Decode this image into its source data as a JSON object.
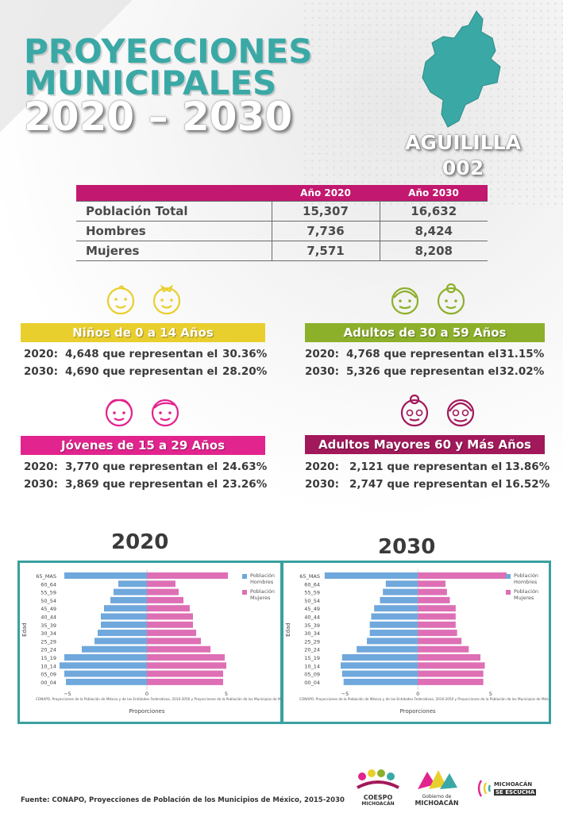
{
  "header": {
    "title_line1": "PROYECCIONES",
    "title_line2": "MUNICIPALES",
    "title_line3": "2020 – 2030",
    "municipality": "AGUILILLA",
    "code": "002"
  },
  "population_table": {
    "col_2020": "Año 2020",
    "col_2030": "Año 2030",
    "rows": [
      {
        "label": "Población Total",
        "v2020": "15,307",
        "v2030": "16,632"
      },
      {
        "label": "Hombres",
        "v2020": "7,736",
        "v2030": "8,424"
      },
      {
        "label": "Mujeres",
        "v2020": "7,571",
        "v2030": "8,208"
      }
    ]
  },
  "groups": [
    {
      "title": "Niños de 0 a 14 Años",
      "color": "#e9cf2e",
      "y2020": "2020:",
      "l2020": "4,648 que representan el",
      "p2020": "30.36%",
      "y2030": "2030:",
      "l2030": "4,690 que representan el",
      "p2030": "28.20%"
    },
    {
      "title": "Adultos de 30 a 59 Años",
      "color": "#8db02b",
      "y2020": "2020:",
      "l2020": "4,768 que representan el",
      "p2020": "31.15%",
      "y2030": "2030:",
      "l2030": "5,326 que representan el",
      "p2030": "32.02%"
    },
    {
      "title": "Jóvenes de 15 a 29 Años",
      "color": "#e2248e",
      "y2020": "2020:",
      "l2020": "3,770 que representan el",
      "p2020": "24.63%",
      "y2030": "2030:",
      "l2030": "3,869 que representan el",
      "p2030": "23.26%"
    },
    {
      "title": "Adultos Mayores  60 y Más Años",
      "color": "#a2195b",
      "y2020": "2020:",
      "l2020": "2,121 que representan el",
      "p2020": "13.86%",
      "y2030": "2030:",
      "l2030": "2,747 que representan el",
      "p2030": "16.52%"
    }
  ],
  "chart_data": [
    {
      "type": "bar",
      "title": "2020",
      "ylabel": "Edad",
      "xlabel": "Proporciones",
      "xlim": [
        -5.5,
        5.5
      ],
      "xticks": [
        "−5",
        "0",
        "5"
      ],
      "source_note": "CONAPO. Proyecciones de la Población de México y de las Entidades Federativas, 2016-2050 y Proyecciones de la Población de los Municipios de Méxic",
      "legend": [
        "Población Hombres",
        "Población Mujeres"
      ],
      "categories": [
        "65_MAS",
        "60_64",
        "55_59",
        "50_54",
        "45_49",
        "40_44",
        "35_39",
        "30_34",
        "25_29",
        "20_24",
        "15_19",
        "10_14",
        "05_09",
        "00_04"
      ],
      "series": [
        {
          "name": "Población Hombres",
          "color": "#6fa8dc",
          "values": [
            -5.2,
            -1.8,
            -2.1,
            -2.3,
            -2.7,
            -2.9,
            -2.9,
            -3.1,
            -3.3,
            -4.1,
            -5.2,
            -5.5,
            -5.2,
            -5.1
          ]
        },
        {
          "name": "Población Mujeres",
          "color": "#de6fb5",
          "values": [
            5.1,
            1.8,
            2.0,
            2.3,
            2.7,
            2.9,
            2.9,
            3.1,
            3.4,
            4.0,
            4.9,
            5.0,
            4.8,
            4.8
          ]
        }
      ]
    },
    {
      "type": "bar",
      "title": "2030",
      "ylabel": "Edad",
      "xlabel": "Proporciones",
      "xlim": [
        -6.5,
        5.5
      ],
      "xticks": [
        "−5",
        "0",
        "5"
      ],
      "source_note": "CONAPO. Proyecciones de la Población de México y de las Entidades Federativas, 2016-2050 y Proyecciones de la Población de los Municipios de Méxic",
      "legend": [
        "Población Hombres",
        "Población Mujeres"
      ],
      "categories": [
        "65_MAS",
        "60_64",
        "55_59",
        "50_54",
        "45_49",
        "40_44",
        "35_39",
        "30_34",
        "25_29",
        "20_24",
        "15_19",
        "10_14",
        "05_09",
        "00_04"
      ],
      "series": [
        {
          "name": "Población Hombres",
          "color": "#6fa8dc",
          "values": [
            -6.4,
            -2.2,
            -2.4,
            -2.6,
            -3.0,
            -3.2,
            -3.3,
            -3.3,
            -3.5,
            -4.2,
            -5.2,
            -5.3,
            -5.2,
            -5.1
          ]
        },
        {
          "name": "Población Mujeres",
          "color": "#de6fb5",
          "values": [
            6.1,
            1.9,
            2.0,
            2.2,
            2.6,
            2.6,
            2.6,
            2.7,
            3.0,
            3.5,
            4.3,
            4.6,
            4.5,
            4.5
          ]
        }
      ]
    }
  ],
  "footer": {
    "source": "Fuente: CONAPO, Proyecciones de Población de los Municipios de México, 2015-2030",
    "logo_coespo_1": "COESPO",
    "logo_coespo_2": "MICHOACÁN",
    "logo_gob_1": "Gobierno de",
    "logo_gob_2": "MICHOACÁN",
    "logo_me_1": "MICHOACÁN",
    "logo_me_2": "SE ESCUCHA"
  }
}
